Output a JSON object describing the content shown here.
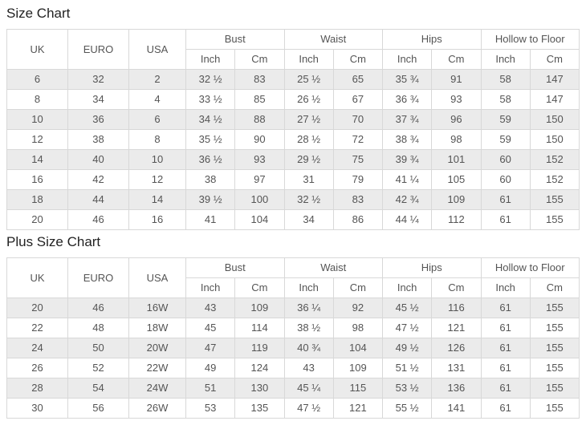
{
  "colors": {
    "page_bg": "#ffffff",
    "border": "#d8d8d8",
    "row_shaded_bg": "#ebebeb",
    "row_plain_bg": "#ffffff",
    "cell_text": "#555555",
    "title_text": "#222222"
  },
  "tables": [
    {
      "title": "Size Chart",
      "size_columns": [
        "UK",
        "EURO",
        "USA"
      ],
      "measure_groups": [
        "Bust",
        "Waist",
        "Hips",
        "Hollow to Floor"
      ],
      "unit_columns": [
        "Inch",
        "Cm"
      ],
      "rows": [
        [
          "6",
          "32",
          "2",
          "32 ½",
          "83",
          "25 ½",
          "65",
          "35 ¾",
          "91",
          "58",
          "147"
        ],
        [
          "8",
          "34",
          "4",
          "33 ½",
          "85",
          "26 ½",
          "67",
          "36 ¾",
          "93",
          "58",
          "147"
        ],
        [
          "10",
          "36",
          "6",
          "34 ½",
          "88",
          "27 ½",
          "70",
          "37 ¾",
          "96",
          "59",
          "150"
        ],
        [
          "12",
          "38",
          "8",
          "35 ½",
          "90",
          "28 ½",
          "72",
          "38 ¾",
          "98",
          "59",
          "150"
        ],
        [
          "14",
          "40",
          "10",
          "36 ½",
          "93",
          "29 ½",
          "75",
          "39 ¾",
          "101",
          "60",
          "152"
        ],
        [
          "16",
          "42",
          "12",
          "38",
          "97",
          "31",
          "79",
          "41 ¼",
          "105",
          "60",
          "152"
        ],
        [
          "18",
          "44",
          "14",
          "39 ½",
          "100",
          "32 ½",
          "83",
          "42 ¾",
          "109",
          "61",
          "155"
        ],
        [
          "20",
          "46",
          "16",
          "41",
          "104",
          "34",
          "86",
          "44 ¼",
          "112",
          "61",
          "155"
        ]
      ]
    },
    {
      "title": "Plus Size Chart",
      "size_columns": [
        "UK",
        "EURO",
        "USA"
      ],
      "measure_groups": [
        "Bust",
        "Waist",
        "Hips",
        "Hollow to Floor"
      ],
      "unit_columns": [
        "Inch",
        "Cm"
      ],
      "rows": [
        [
          "20",
          "46",
          "16W",
          "43",
          "109",
          "36 ¼",
          "92",
          "45 ½",
          "116",
          "61",
          "155"
        ],
        [
          "22",
          "48",
          "18W",
          "45",
          "114",
          "38 ½",
          "98",
          "47 ½",
          "121",
          "61",
          "155"
        ],
        [
          "24",
          "50",
          "20W",
          "47",
          "119",
          "40 ¾",
          "104",
          "49 ½",
          "126",
          "61",
          "155"
        ],
        [
          "26",
          "52",
          "22W",
          "49",
          "124",
          "43",
          "109",
          "51 ½",
          "131",
          "61",
          "155"
        ],
        [
          "28",
          "54",
          "24W",
          "51",
          "130",
          "45 ¼",
          "115",
          "53 ½",
          "136",
          "61",
          "155"
        ],
        [
          "30",
          "56",
          "26W",
          "53",
          "135",
          "47 ½",
          "121",
          "55 ½",
          "141",
          "61",
          "155"
        ]
      ]
    }
  ]
}
